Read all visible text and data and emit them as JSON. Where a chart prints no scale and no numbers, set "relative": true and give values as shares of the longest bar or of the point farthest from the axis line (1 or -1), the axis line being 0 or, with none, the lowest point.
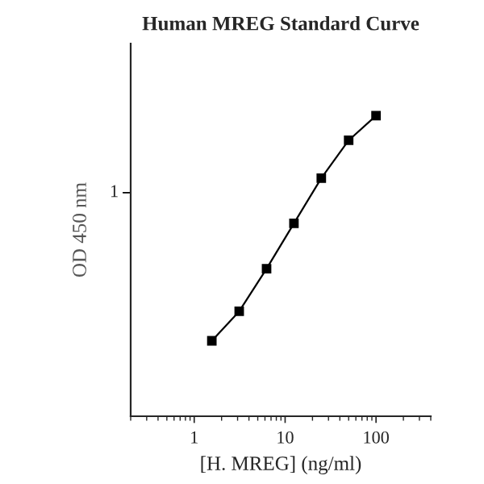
{
  "chart_data": {
    "type": "line",
    "title": "Human MREG Standard Curve",
    "xlabel": "[H. MREG] (ng/ml)",
    "ylabel": "OD 450 nm",
    "x": [
      1.5625,
      3.125,
      6.25,
      12.5,
      25,
      50,
      100
    ],
    "series": [
      {
        "color": "#000000",
        "values": [
          0.251,
          0.349,
          0.491,
          0.642,
          0.792,
          0.918,
          1.0
        ]
      }
    ],
    "relative": true,
    "log": "x",
    "xlim": [
      0.2,
      400
    ],
    "xticks": [
      1,
      10,
      100
    ],
    "annotations": [
      "1"
    ],
    "marker": "square",
    "line_style": "solid",
    "grid": false,
    "legend": false
  }
}
